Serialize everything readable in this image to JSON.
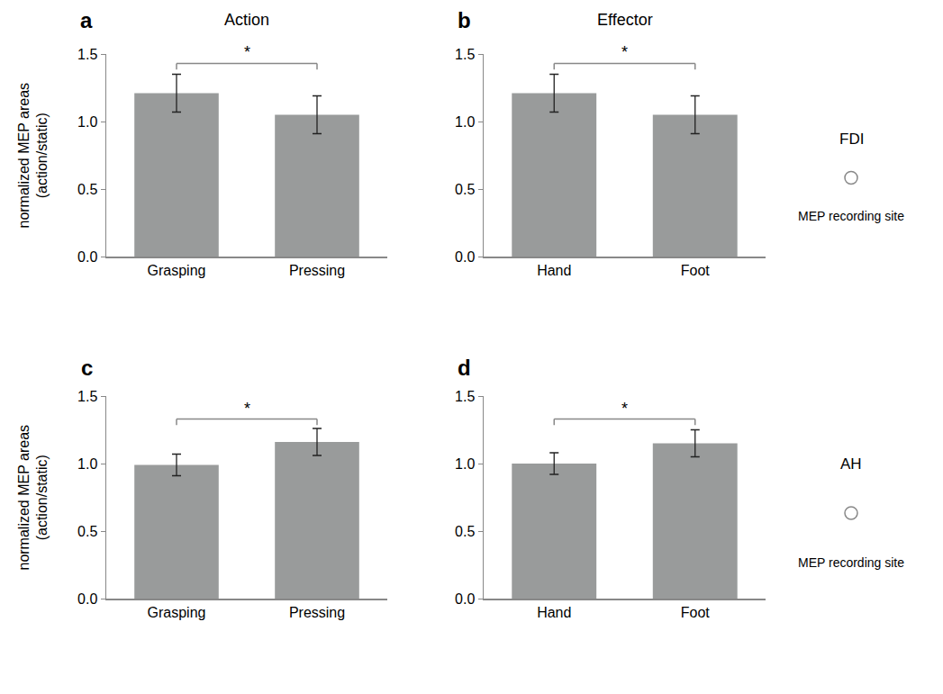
{
  "chart_data": [
    {
      "panel": "a",
      "title": "Action",
      "type": "bar",
      "y_label": [
        "normalized MEP areas",
        "(action/static)"
      ],
      "categories": [
        "Grasping",
        "Pressing"
      ],
      "values": [
        1.21,
        1.05
      ],
      "errors": [
        0.14,
        0.14
      ],
      "color": "#999b9b",
      "ylim": [
        0,
        1.5
      ],
      "yticks": [
        {
          "value": 0,
          "label": "0.0"
        },
        {
          "value": 0.5,
          "label": "0.5"
        },
        {
          "value": 1,
          "label": "1.0"
        },
        {
          "value": 1.5,
          "label": "1.5"
        }
      ],
      "grid": false,
      "significance": {
        "between": [
          "Grasping",
          "Pressing"
        ],
        "label": "*",
        "y": 1.43
      }
    },
    {
      "panel": "b",
      "title": "Effector",
      "type": "bar",
      "categories": [
        "Hand",
        "Foot"
      ],
      "values": [
        1.21,
        1.05
      ],
      "errors": [
        0.14,
        0.14
      ],
      "color": "#999b9b",
      "ylim": [
        0,
        1.5
      ],
      "yticks": [
        {
          "value": 0,
          "label": "0.0"
        },
        {
          "value": 0.5,
          "label": "0.5"
        },
        {
          "value": 1,
          "label": "1.0"
        },
        {
          "value": 1.5,
          "label": "1.5"
        }
      ],
      "grid": false,
      "significance": {
        "between": [
          "Hand",
          "Foot"
        ],
        "label": "*",
        "y": 1.43
      },
      "recording_site": "FDI",
      "recording_site_label": "MEP recording site"
    },
    {
      "panel": "c",
      "type": "bar",
      "y_label": [
        "normalized MEP areas",
        "(action/static)"
      ],
      "categories": [
        "Grasping",
        "Pressing"
      ],
      "values": [
        0.99,
        1.16
      ],
      "errors": [
        0.08,
        0.1
      ],
      "color": "#999b9b",
      "ylim": [
        0,
        1.5
      ],
      "yticks": [
        {
          "value": 0,
          "label": "0.0"
        },
        {
          "value": 0.5,
          "label": "0.5"
        },
        {
          "value": 1,
          "label": "1.0"
        },
        {
          "value": 1.5,
          "label": "1.5"
        }
      ],
      "grid": false,
      "significance": {
        "between": [
          "Grasping",
          "Pressing"
        ],
        "label": "*",
        "y": 1.33
      }
    },
    {
      "panel": "d",
      "type": "bar",
      "categories": [
        "Hand",
        "Foot"
      ],
      "values": [
        1.0,
        1.15
      ],
      "errors": [
        0.08,
        0.1
      ],
      "color": "#999b9b",
      "ylim": [
        0,
        1.5
      ],
      "yticks": [
        {
          "value": 0,
          "label": "0.0"
        },
        {
          "value": 0.5,
          "label": "0.5"
        },
        {
          "value": 1,
          "label": "1.0"
        },
        {
          "value": 1.5,
          "label": "1.5"
        }
      ],
      "grid": false,
      "significance": {
        "between": [
          "Hand",
          "Foot"
        ],
        "label": "*",
        "y": 1.33
      },
      "recording_site": "AH",
      "recording_site_label": "MEP recording site"
    }
  ]
}
